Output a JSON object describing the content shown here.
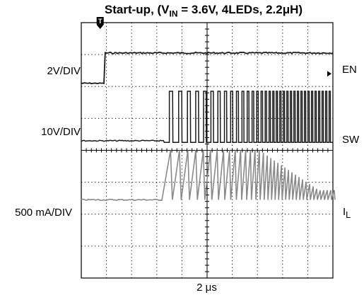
{
  "title": {
    "prefix": "Start-up, (V",
    "subscript": "IN",
    "suffix": " = 3.6V, 4LEDs, 2.2μH)"
  },
  "footer": {
    "timebase": "2 μs"
  },
  "chart_data": {
    "type": "line",
    "subtype": "oscilloscope",
    "grid": true,
    "x_divisions": 10,
    "y_divisions": 8,
    "timebase_label": "2 μs",
    "trigger_marker": "T",
    "series": [
      {
        "name": "EN",
        "scale_label": "2V/DIV",
        "color": "#1a1a1a",
        "baseline_div": 1.9,
        "low_level_div": 0.0,
        "high_level_div": 0.95,
        "step_at_div": 0.95
      },
      {
        "name": "SW",
        "scale_label": "10V/DIV",
        "color": "#1a1a1a",
        "baseline_div": 3.75,
        "low_level_div": 0.0,
        "pre_step_level_div": 0.05,
        "drop_at_div": 3.3,
        "pulse_height_div": 1.6,
        "pulse_start_div": 3.5,
        "pulse_period_div_initial": 0.37,
        "pulse_period_div_final": 0.14
      },
      {
        "name": "I",
        "name_subscript": "L",
        "scale_label": "500 mA/DIV",
        "color": "#8a8a8a",
        "baseline_div": 5.55,
        "start_at_div": 3.25,
        "ripple_amplitude_div_initial": 1.55,
        "ripple_amplitude_div_final": 0.3,
        "ripple_period_div_initial": 0.37,
        "ripple_period_div_final": 0.14
      }
    ]
  }
}
